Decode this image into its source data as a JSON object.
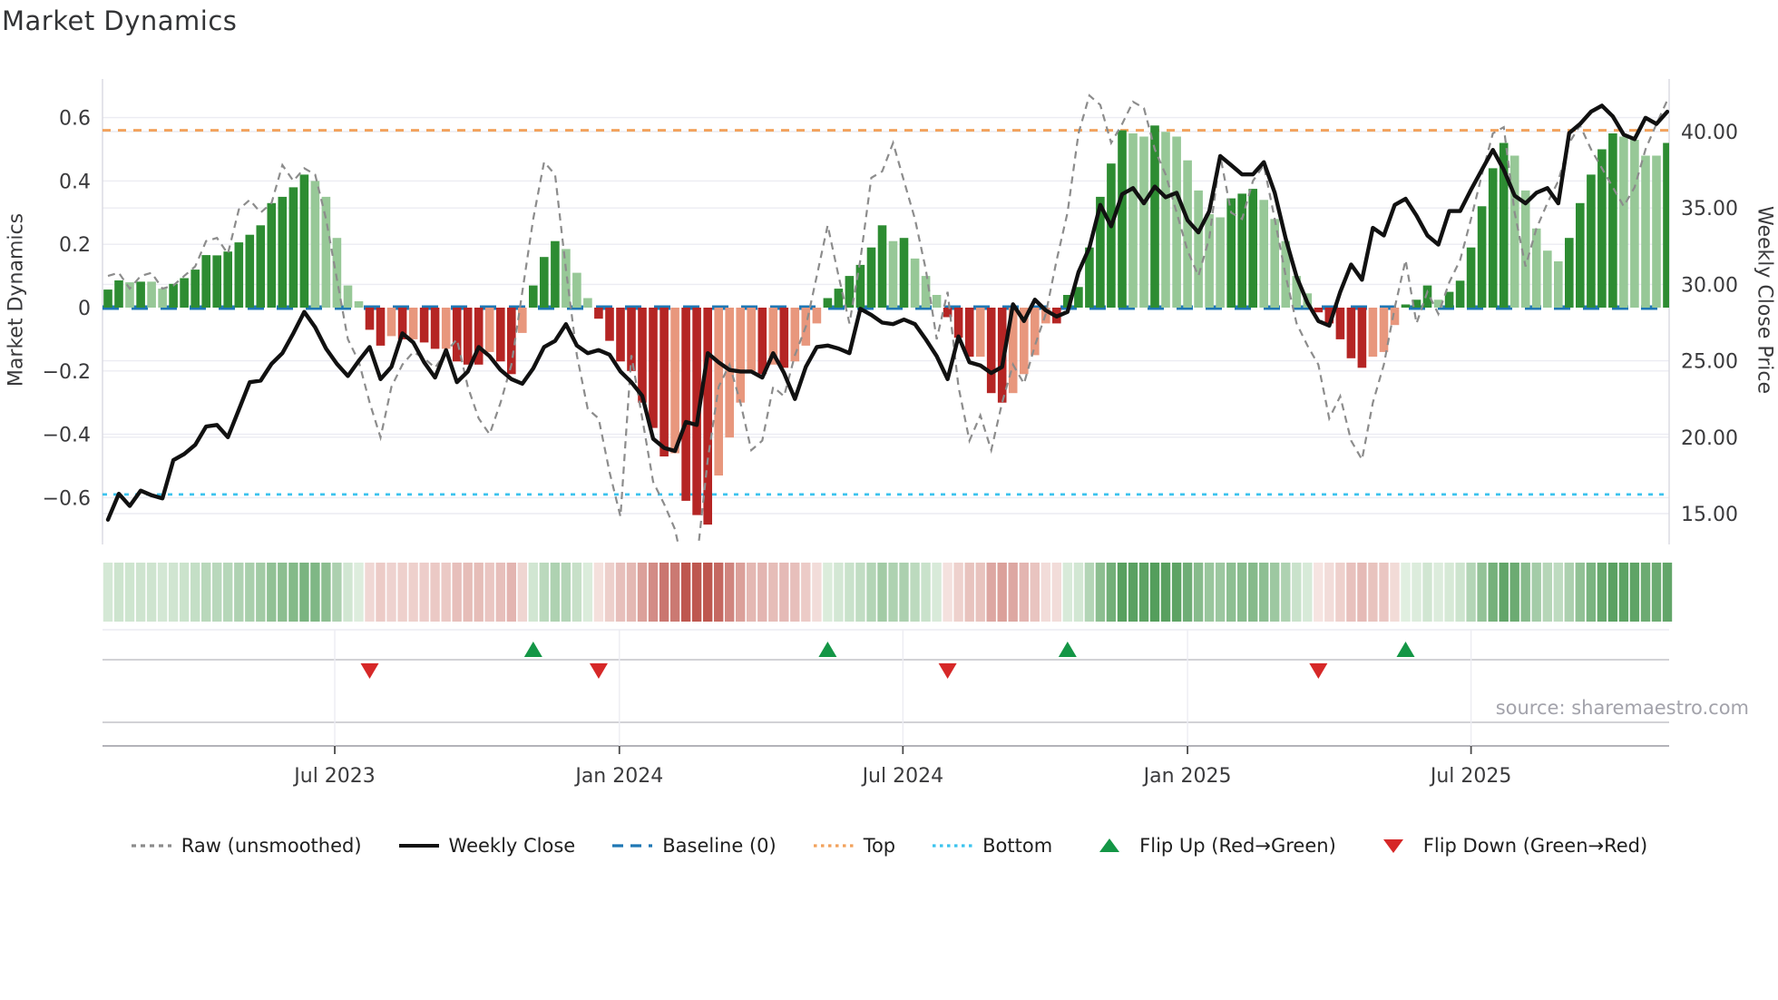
{
  "title": "Market Dynamics",
  "source_note": "source: sharemaestro.com",
  "axes": {
    "left_label": "Market Dynamics",
    "right_label": "Weekly Close Price",
    "left_ticks": [
      {
        "label": "0.6",
        "value": 0.6
      },
      {
        "label": "0.4",
        "value": 0.4
      },
      {
        "label": "0.2",
        "value": 0.2
      },
      {
        "label": "0",
        "value": 0
      },
      {
        "label": "−0.2",
        "value": -0.2
      },
      {
        "label": "−0.4",
        "value": -0.4
      },
      {
        "label": "−0.6",
        "value": -0.6
      }
    ],
    "right_ticks": [
      {
        "label": "40.00",
        "value": 40
      },
      {
        "label": "35.00",
        "value": 35
      },
      {
        "label": "30.00",
        "value": 30
      },
      {
        "label": "25.00",
        "value": 25
      },
      {
        "label": "20.00",
        "value": 20
      },
      {
        "label": "15.00",
        "value": 15
      }
    ],
    "x_ticks": [
      {
        "label": "Jul 2023",
        "week": 20.8
      },
      {
        "label": "Jan 2024",
        "week": 46.9
      },
      {
        "label": "Jul 2024",
        "week": 72.9
      },
      {
        "label": "Jan 2025",
        "week": 99.0
      },
      {
        "label": "Jul 2025",
        "week": 125.0
      }
    ]
  },
  "reference_lines": {
    "baseline_value": 0,
    "top_value": 0.56,
    "bottom_value": -0.59
  },
  "chart_data": {
    "type": "combo",
    "x_unit": "weeks (144 weekly observations, Feb 2023 - Nov 2025)",
    "left_axis_range": [
      -0.75,
      0.72
    ],
    "right_axis_range": [
      12.9,
      43.4
    ],
    "grid": true,
    "legend_position": "bottom",
    "series": [
      {
        "name": "momentum-bars",
        "type": "bar",
        "axis": "left",
        "values": [
          0.057,
          0.086,
          0.08,
          0.082,
          0.082,
          0.06,
          0.075,
          0.093,
          0.12,
          0.166,
          0.165,
          0.177,
          0.206,
          0.23,
          0.26,
          0.33,
          0.35,
          0.38,
          0.42,
          0.4,
          0.35,
          0.22,
          0.07,
          0.02,
          -0.07,
          -0.12,
          -0.09,
          -0.1,
          -0.1,
          -0.11,
          -0.13,
          -0.13,
          -0.17,
          -0.18,
          -0.18,
          -0.14,
          -0.17,
          -0.21,
          -0.08,
          0.07,
          0.16,
          0.21,
          0.185,
          0.11,
          0.03,
          -0.035,
          -0.105,
          -0.17,
          -0.2,
          -0.3,
          -0.38,
          -0.47,
          -0.46,
          -0.61,
          -0.655,
          -0.685,
          -0.53,
          -0.41,
          -0.3,
          -0.2,
          -0.21,
          -0.18,
          -0.19,
          -0.17,
          -0.12,
          -0.05,
          0.03,
          0.06,
          0.1,
          0.135,
          0.19,
          0.26,
          0.21,
          0.22,
          0.155,
          0.1,
          0.04,
          -0.03,
          -0.095,
          -0.155,
          -0.155,
          -0.27,
          -0.3,
          -0.27,
          -0.21,
          -0.15,
          -0.05,
          -0.05,
          0.04,
          0.065,
          0.19,
          0.35,
          0.455,
          0.56,
          0.55,
          0.54,
          0.575,
          0.555,
          0.54,
          0.465,
          0.37,
          0.295,
          0.285,
          0.345,
          0.36,
          0.375,
          0.34,
          0.28,
          0.21,
          0.1,
          0.045,
          -0.015,
          -0.05,
          -0.1,
          -0.16,
          -0.19,
          -0.155,
          -0.14,
          -0.055,
          0.01,
          0.025,
          0.07,
          0.025,
          0.05,
          0.085,
          0.19,
          0.32,
          0.44,
          0.52,
          0.48,
          0.37,
          0.25,
          0.18,
          0.146,
          0.22,
          0.33,
          0.42,
          0.5,
          0.55,
          0.54,
          0.53,
          0.48,
          0.48,
          0.52
        ],
        "shades": [
          "d",
          "d",
          "l",
          "d",
          "l",
          "l",
          "d",
          "d",
          "d",
          "d",
          "d",
          "d",
          "d",
          "d",
          "d",
          "d",
          "d",
          "d",
          "d",
          "l",
          "l",
          "l",
          "l",
          "l",
          "d",
          "d",
          "l",
          "d",
          "l",
          "d",
          "d",
          "l",
          "d",
          "d",
          "d",
          "l",
          "d",
          "d",
          "l",
          "d",
          "d",
          "d",
          "l",
          "l",
          "l",
          "d",
          "d",
          "d",
          "d",
          "d",
          "d",
          "d",
          "l",
          "d",
          "d",
          "d",
          "l",
          "l",
          "l",
          "l",
          "d",
          "l",
          "d",
          "l",
          "l",
          "l",
          "d",
          "d",
          "d",
          "d",
          "d",
          "d",
          "l",
          "d",
          "l",
          "l",
          "l",
          "d",
          "d",
          "d",
          "l",
          "d",
          "d",
          "l",
          "l",
          "l",
          "l",
          "d",
          "d",
          "d",
          "d",
          "d",
          "d",
          "d",
          "l",
          "l",
          "d",
          "l",
          "l",
          "l",
          "l",
          "l",
          "l",
          "d",
          "d",
          "d",
          "l",
          "l",
          "l",
          "l",
          "l",
          "d",
          "d",
          "d",
          "d",
          "d",
          "l",
          "l",
          "l",
          "d",
          "d",
          "d",
          "l",
          "d",
          "d",
          "d",
          "d",
          "d",
          "d",
          "l",
          "l",
          "l",
          "l",
          "l",
          "d",
          "d",
          "d",
          "d",
          "d",
          "l",
          "l",
          "l",
          "l",
          "d"
        ]
      },
      {
        "name": "Raw (unsmoothed)",
        "type": "line",
        "axis": "left",
        "values": [
          0.1,
          0.11,
          0.06,
          0.1,
          0.11,
          0.06,
          0.07,
          0.1,
          0.13,
          0.21,
          0.22,
          0.17,
          0.31,
          0.34,
          0.3,
          0.33,
          0.45,
          0.4,
          0.44,
          0.42,
          0.28,
          0.09,
          -0.1,
          -0.17,
          -0.3,
          -0.41,
          -0.25,
          -0.18,
          -0.14,
          -0.16,
          -0.19,
          -0.14,
          -0.1,
          -0.25,
          -0.35,
          -0.4,
          -0.3,
          -0.18,
          0.05,
          0.28,
          0.46,
          0.42,
          0.12,
          -0.15,
          -0.32,
          -0.35,
          -0.52,
          -0.66,
          -0.15,
          -0.35,
          -0.55,
          -0.62,
          -0.7,
          -0.86,
          -0.8,
          -0.48,
          -0.25,
          -0.18,
          -0.3,
          -0.45,
          -0.42,
          -0.25,
          -0.28,
          -0.15,
          -0.06,
          0.1,
          0.26,
          0.1,
          -0.05,
          0.15,
          0.41,
          0.43,
          0.52,
          0.4,
          0.28,
          0.12,
          -0.1,
          0.05,
          -0.25,
          -0.42,
          -0.34,
          -0.45,
          -0.3,
          -0.18,
          -0.24,
          -0.12,
          -0.02,
          0.15,
          0.3,
          0.55,
          0.67,
          0.64,
          0.52,
          0.58,
          0.65,
          0.63,
          0.5,
          0.42,
          0.3,
          0.18,
          0.1,
          0.22,
          0.48,
          0.3,
          0.28,
          0.4,
          0.45,
          0.28,
          0.1,
          -0.05,
          -0.12,
          -0.18,
          -0.35,
          -0.28,
          -0.42,
          -0.48,
          -0.3,
          -0.18,
          0.0,
          0.15,
          -0.05,
          0.05,
          -0.02,
          0.08,
          0.15,
          0.28,
          0.42,
          0.55,
          0.57,
          0.3,
          0.13,
          0.25,
          0.33,
          0.4,
          0.52,
          0.575,
          0.5,
          0.44,
          0.38,
          0.32,
          0.38,
          0.5,
          0.58,
          0.655
        ]
      },
      {
        "name": "Weekly Close",
        "type": "line",
        "axis": "right",
        "values": [
          14.6,
          16.3,
          15.5,
          16.5,
          16.2,
          16.0,
          18.5,
          18.9,
          19.5,
          20.7,
          20.8,
          20.0,
          21.8,
          23.6,
          23.7,
          24.8,
          25.5,
          26.8,
          28.2,
          27.2,
          25.8,
          24.8,
          24.0,
          25.0,
          25.9,
          23.8,
          24.6,
          26.8,
          26.2,
          24.9,
          23.9,
          25.7,
          23.6,
          24.3,
          25.9,
          25.3,
          24.4,
          23.8,
          23.5,
          24.5,
          25.9,
          26.3,
          27.4,
          26.0,
          25.5,
          25.7,
          25.4,
          24.3,
          23.6,
          22.7,
          19.9,
          19.3,
          19.1,
          21.0,
          20.8,
          25.5,
          24.9,
          24.4,
          24.3,
          24.3,
          23.9,
          25.5,
          24.2,
          22.5,
          24.6,
          25.9,
          26.0,
          25.8,
          25.5,
          28.4,
          28.0,
          27.5,
          27.4,
          27.7,
          27.4,
          26.4,
          25.3,
          23.8,
          26.6,
          24.9,
          24.7,
          24.2,
          24.6,
          28.7,
          27.6,
          29.0,
          28.3,
          27.9,
          28.2,
          30.8,
          32.4,
          35.2,
          33.8,
          35.9,
          36.3,
          35.3,
          36.4,
          35.7,
          36.0,
          34.2,
          33.4,
          34.8,
          38.4,
          37.8,
          37.2,
          37.2,
          38.0,
          36.0,
          33.0,
          30.5,
          28.8,
          27.6,
          27.3,
          29.5,
          31.3,
          30.3,
          33.7,
          33.2,
          35.2,
          35.6,
          34.5,
          33.2,
          32.6,
          34.8,
          34.8,
          36.2,
          37.5,
          38.8,
          37.5,
          35.8,
          35.3,
          36.0,
          36.3,
          35.3,
          39.9,
          40.5,
          41.3,
          41.7,
          41.0,
          39.8,
          39.5,
          40.9,
          40.5,
          41.3
        ]
      }
    ],
    "heatmap_strip": {
      "source": "momentum-bars",
      "normalize_abs": 0.6
    },
    "flip_up_weeks": [
      39,
      66,
      88,
      119
    ],
    "flip_down_weeks": [
      24,
      45,
      77,
      111
    ],
    "title": "Market Dynamics",
    "xlabel": "",
    "ylabel_left": "Market Dynamics",
    "ylabel_right": "Weekly Close Price"
  },
  "legend": [
    {
      "label": "Raw (unsmoothed)",
      "glyph": "dashed-gray-line",
      "color": "#8c8c8c"
    },
    {
      "label": "Weekly Close",
      "glyph": "solid-black-line",
      "color": "#111111"
    },
    {
      "label": "Baseline (0)",
      "glyph": "dashed-blue-line",
      "color": "#1f77b4"
    },
    {
      "label": "Top",
      "glyph": "dotted-orange-line",
      "color": "#f2a25c"
    },
    {
      "label": "Bottom",
      "glyph": "dotted-cyan-line",
      "color": "#3cc3ee"
    },
    {
      "label": "Flip Up (Red→Green)",
      "glyph": "triangle-up",
      "color": "#149646"
    },
    {
      "label": "Flip Down (Green→Red)",
      "glyph": "triangle-down",
      "color": "#d62828"
    }
  ],
  "colors": {
    "bar_green_dark": "#2d8c32",
    "bar_green_light": "#97c897",
    "bar_red_dark": "#b52524",
    "bar_red_light": "#e8977d",
    "baseline_blue": "#1f77b4",
    "top_orange": "#f2a25c",
    "bottom_cyan": "#3cc3ee",
    "raw_gray": "#8c8c8c",
    "close_black": "#111111",
    "grid": "#ececf2",
    "spine": "#d9d9e0",
    "panel_line": "#c3c3c9",
    "tick_text": "#3a3a3c",
    "flip_up": "#149646",
    "flip_down": "#d62828"
  }
}
